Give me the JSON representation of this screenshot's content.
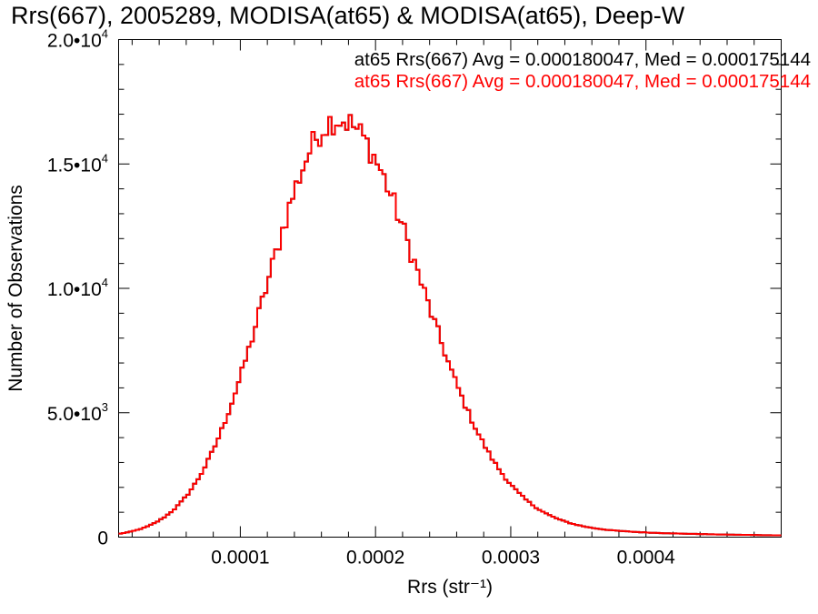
{
  "chart_data": {
    "type": "histogram",
    "title": "Rrs(667), 2005289, MODISA(at65) & MODISA(at65), Deep-W",
    "xlabel": "Rrs (str⁻¹)",
    "ylabel": "Number of Observations",
    "xlim": [
      1e-05,
      0.0005
    ],
    "ylim": [
      0,
      20000
    ],
    "x_ticks": [
      {
        "value": 0.0001,
        "label": "0.0001"
      },
      {
        "value": 0.0002,
        "label": "0.0002"
      },
      {
        "value": 0.0003,
        "label": "0.0003"
      },
      {
        "value": 0.0004,
        "label": "0.0004"
      }
    ],
    "y_ticks": [
      {
        "value": 0,
        "base": "0",
        "exp": ""
      },
      {
        "value": 5000,
        "base": "5.0•10",
        "exp": "3"
      },
      {
        "value": 10000,
        "base": "1.0•10",
        "exp": "4"
      },
      {
        "value": 15000,
        "base": "1.5•10",
        "exp": "4"
      },
      {
        "value": 20000,
        "base": "2.0•10",
        "exp": "4"
      }
    ],
    "series": [
      {
        "legend": "at65 Rrs(667) Avg = 0.000180047, Med = 0.000175144",
        "color": "#000000",
        "peak_x": 0.000172,
        "peak_count": 16800
      },
      {
        "legend": "at65 Rrs(667) Avg = 0.000180047, Med = 0.000175144",
        "color": "#ff0000",
        "peak_x": 0.000172,
        "peak_count": 16800
      }
    ],
    "grid": false,
    "legend_position": "top-right"
  }
}
